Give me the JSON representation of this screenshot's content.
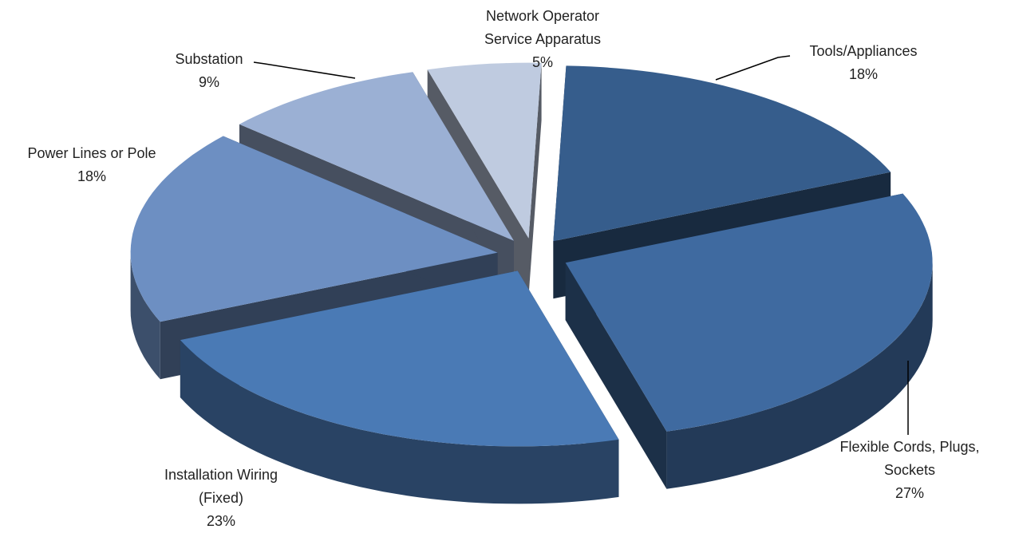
{
  "chart_data": {
    "type": "pie",
    "categories": [
      "Tools/Appliances",
      "Flexible Cords, Plugs, Sockets",
      "Installation Wiring (Fixed)",
      "Power Lines or Pole",
      "Substation",
      "Network Operator Service Apparatus"
    ],
    "values": [
      18,
      27,
      23,
      18,
      9,
      5
    ],
    "value_labels": [
      "18%",
      "27%",
      "23%",
      "18%",
      "9%",
      "5%"
    ],
    "colors": [
      "#365d8c",
      "#3f6aa0",
      "#4a7ab5",
      "#6d8fc2",
      "#9bb0d4",
      "#bfcbe0"
    ],
    "three_d": true,
    "exploded": true
  }
}
